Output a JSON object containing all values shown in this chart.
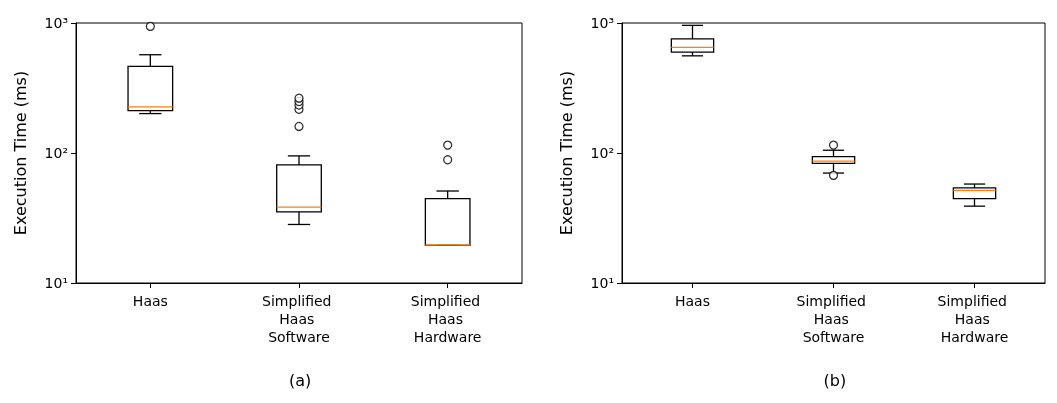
{
  "chart_data": [
    {
      "type": "box",
      "ylabel": "Execution Time (ms)",
      "categories": [
        "Haas",
        "Simplified Haas Software",
        "Simplified Haas Hardware"
      ],
      "log": true,
      "ylim": [
        10,
        1000
      ],
      "yticks": [
        {
          "value": 10,
          "label": "10¹"
        },
        {
          "value": 100,
          "label": "10²"
        },
        {
          "value": 1000,
          "label": "10³"
        }
      ],
      "grid": false,
      "annotations": [
        "(a)"
      ],
      "series": [
        {
          "color": "#000000",
          "boxes": [
            {
              "low": 201,
              "q1": 212,
              "median": 226,
              "q3": 463,
              "high": 570,
              "outliers": [
                942
              ]
            },
            {
              "low": 28.2,
              "q1": 35.3,
              "median": 38.4,
              "q3": 81,
              "high": 95,
              "outliers": [
                160,
                217,
                234,
                249,
                264
              ]
            },
            {
              "low": 19.5,
              "q1": 19.5,
              "median": 19.6,
              "q3": 44.5,
              "high": 51,
              "outliers": [
                88.7,
                115
              ]
            }
          ]
        }
      ]
    },
    {
      "type": "box",
      "ylabel": "Execution Time (ms)",
      "categories": [
        "Haas",
        "Simplified Haas Software",
        "Simplified Haas Hardware"
      ],
      "log": true,
      "ylim": [
        10,
        1000
      ],
      "yticks": [
        {
          "value": 10,
          "label": "10¹"
        },
        {
          "value": 100,
          "label": "10²"
        },
        {
          "value": 1000,
          "label": "10³"
        }
      ],
      "grid": false,
      "annotations": [
        "(b)"
      ],
      "series": [
        {
          "color": "#000000",
          "boxes": [
            {
              "low": 559,
              "q1": 597,
              "median": 649,
              "q3": 754,
              "high": 959
            },
            {
              "low": 70.1,
              "q1": 83.2,
              "median": 86.7,
              "q3": 93.8,
              "high": 105,
              "outliers": [
                67.3,
                115
              ]
            },
            {
              "low": 39,
              "q1": 44.5,
              "median": 51.5,
              "q3": 54,
              "high": 57.7
            }
          ]
        }
      ]
    }
  ]
}
